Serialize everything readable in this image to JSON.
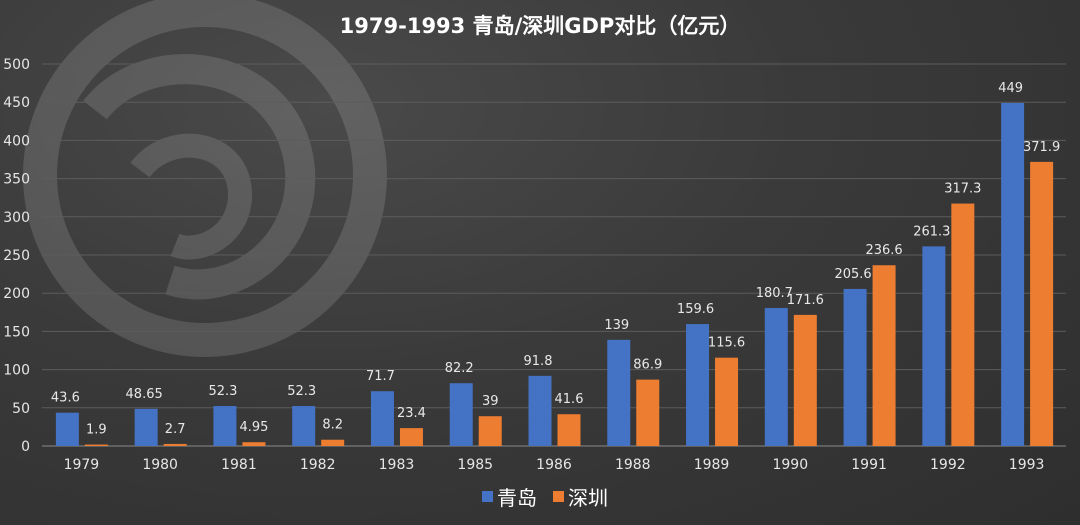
{
  "chart_data": {
    "type": "bar",
    "title": "1979-1993 青岛/深圳GDP对比（亿元）",
    "categories": [
      "1979",
      "1980",
      "1981",
      "1982",
      "1983",
      "1985",
      "1986",
      "1988",
      "1989",
      "1990",
      "1991",
      "1992",
      "1993"
    ],
    "series": [
      {
        "name": "青岛",
        "color": "#4472C4",
        "values": [
          43.6,
          48.65,
          52.3,
          52.3,
          71.7,
          82.2,
          91.8,
          139,
          159.6,
          180.7,
          205.6,
          261.3,
          449
        ]
      },
      {
        "name": "深圳",
        "color": "#ED7D31",
        "values": [
          1.9,
          2.7,
          4.95,
          8.2,
          23.4,
          39,
          41.6,
          86.9,
          115.6,
          171.6,
          236.6,
          317.3,
          371.9
        ]
      }
    ],
    "ylim": [
      0,
      500
    ],
    "yticks": [
      0,
      50,
      100,
      150,
      200,
      250,
      300,
      350,
      400,
      450,
      500
    ],
    "grid": true,
    "legend": "bottom-center"
  }
}
